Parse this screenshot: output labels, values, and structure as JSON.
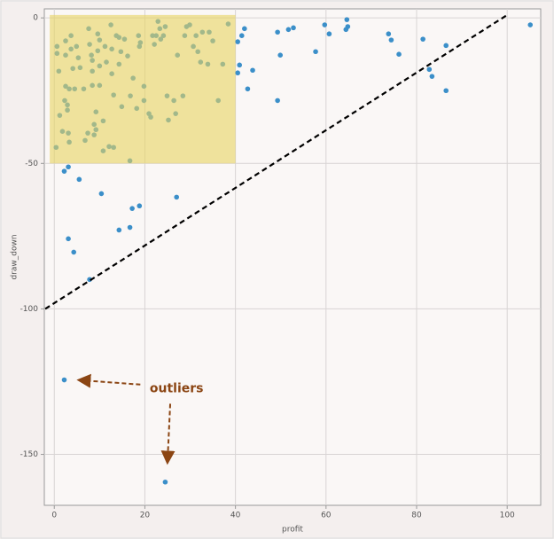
{
  "chart_data": {
    "type": "scatter",
    "xlabel": "profit",
    "ylabel": "draw_down",
    "color": "#3b8fc9",
    "x": [
      2.2,
      3.1,
      5.5,
      10.4,
      18.8,
      17.2,
      16.7,
      14.3,
      3.1,
      4.3,
      7.8,
      27,
      2.2,
      24.5,
      40.5,
      40.9,
      42.7,
      43.8,
      49.3,
      49.9,
      49.3,
      51.7,
      52.8,
      57.7,
      59.7,
      60.7,
      64.6,
      64.8,
      64.4,
      73.8,
      74.4,
      76.1,
      81.4,
      82.8,
      83.4,
      86.5,
      86.5,
      105.1,
      40.5,
      41.4,
      42,
      16.7,
      0.4,
      0.6,
      0.6,
      1,
      1.2,
      1.8,
      2.5,
      2.5,
      2.5,
      2.3,
      2.9,
      2.9,
      3.1,
      3.3,
      3.3,
      3.7,
      3.7,
      4.1,
      4.5,
      4.9,
      5.3,
      5.7,
      6.5,
      6.8,
      7.4,
      7.6,
      7.8,
      8.2,
      8.4,
      8.4,
      8.4,
      8.8,
      8.8,
      9.2,
      9.2,
      9.6,
      9.6,
      10,
      10,
      10,
      10.8,
      10.8,
      11.2,
      11.5,
      12.1,
      12.5,
      12.7,
      12.7,
      13.1,
      13.1,
      13.7,
      14.3,
      14.3,
      14.7,
      14.9,
      15.5,
      16.2,
      16.8,
      17.4,
      18.2,
      18.6,
      18.8,
      19,
      19.8,
      19.8,
      20.9,
      21.3,
      21.7,
      22.1,
      22.5,
      22.9,
      23.3,
      23.5,
      24.1,
      24.5,
      24.9,
      25.2,
      26.4,
      26.8,
      27.2,
      28.4,
      28.8,
      29.2,
      29.9,
      30.7,
      31.3,
      31.7,
      32.3,
      32.7,
      33.9,
      34.2,
      35,
      36.2,
      37.2,
      38.4
    ],
    "values": [
      -52.7,
      -51.2,
      -55.5,
      -60.4,
      -64.6,
      -65.5,
      -72,
      -72.9,
      -75.9,
      -80.5,
      -89.9,
      -61.6,
      -124.4,
      -159.5,
      -18.9,
      -16.2,
      -24.4,
      -18,
      -28.4,
      -12.8,
      -4.9,
      -4,
      -3.4,
      -11.6,
      -2.4,
      -5.5,
      -0.6,
      -3,
      -4,
      -5.5,
      -7.6,
      -12.5,
      -7.3,
      -17.7,
      -20.1,
      -9.5,
      -25,
      -2.4,
      -8.2,
      -6.1,
      -3.7,
      -49.1,
      -44.5,
      -9.8,
      -12.2,
      -18.3,
      -33.5,
      -39,
      -7.9,
      -12.8,
      -23.5,
      -28.4,
      -29.9,
      -31.7,
      -39.6,
      -42.7,
      -24.4,
      -6.1,
      -10.7,
      -17.4,
      -24.4,
      -9.8,
      -13.7,
      -17.1,
      -24.4,
      -42.1,
      -39.6,
      -3.7,
      -9.1,
      -12.8,
      -14.6,
      -18.3,
      -23.2,
      -36.6,
      -40.2,
      -38.4,
      -32.3,
      -5.5,
      -11.3,
      -7.6,
      -16.5,
      -23.2,
      -35.4,
      -45.7,
      -9.8,
      -15.2,
      -44.2,
      -2.4,
      -10.7,
      -19.2,
      -26.5,
      -44.5,
      -6.1,
      -6.7,
      -15.9,
      -11.6,
      -30.5,
      -7.3,
      -13.1,
      -26.8,
      -20.7,
      -31.1,
      -6.1,
      -9.8,
      -8.5,
      -23.5,
      -28.4,
      -32.9,
      -34.1,
      -6.1,
      -9.1,
      -6.1,
      -1.2,
      -3.7,
      -7.3,
      -6.1,
      -3,
      -26.8,
      -35.1,
      -28.4,
      -32.9,
      -12.8,
      -26.8,
      -6.1,
      -3,
      -2.4,
      -9.8,
      -6.1,
      -11.6,
      -15.2,
      -4.9,
      -15.9,
      -4.9,
      -7.9,
      -28.4,
      -15.9,
      -2.1
    ],
    "xlim": [
      -2.2,
      107.4
    ],
    "ylim": [
      -167.5,
      3.1
    ],
    "xticks": [
      0,
      20,
      40,
      60,
      80,
      100
    ],
    "yticks": [
      0,
      -50,
      -100,
      -150
    ],
    "grid": true,
    "highlight": {
      "x": [
        -1,
        40
      ],
      "y": [
        -50,
        1
      ],
      "color": "#e8d460"
    },
    "reference_line": {
      "x": [
        -2,
        100
      ],
      "y": [
        -100,
        1
      ],
      "color": "#000000"
    },
    "annotation": {
      "text": "outliers",
      "x": 27,
      "y": -127.5,
      "color": "#8b4513"
    },
    "arrows": [
      {
        "from": [
          19,
          -126
        ],
        "to": [
          5.7,
          -124.5
        ]
      },
      {
        "from": [
          25.6,
          -132.6
        ],
        "to": [
          25,
          -152.4
        ]
      }
    ]
  }
}
